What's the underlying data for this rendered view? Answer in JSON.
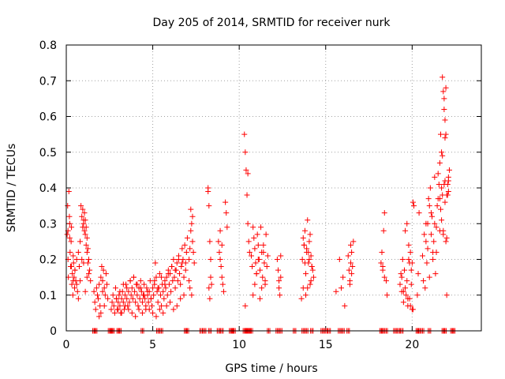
{
  "chart_data": {
    "type": "scatter",
    "title": "Day 205 of 2014, SRMTID for receiver nurk",
    "xlabel": "GPS time / hours",
    "ylabel": "SRMTID / TECUs",
    "xlim": [
      0,
      24
    ],
    "ylim": [
      0,
      0.8
    ],
    "x_ticks": [
      0,
      5,
      10,
      15,
      20
    ],
    "x_tick_labels": [
      "0",
      "5",
      "10",
      "15",
      "20"
    ],
    "y_ticks": [
      0,
      0.1,
      0.2,
      0.3,
      0.4,
      0.5,
      0.6,
      0.7,
      0.8
    ],
    "y_tick_labels": [
      "0",
      "0.1",
      "0.2",
      "0.3",
      "0.4",
      "0.5",
      "0.6",
      "0.7",
      "0.8"
    ],
    "grid": true,
    "marker": "+",
    "color": "#ff0000",
    "zero_markers_x": [
      1.6,
      1.7,
      2.5,
      2.6,
      2.7,
      3.0,
      3.1,
      4.4,
      5.3,
      5.5,
      6.9,
      7.0,
      7.8,
      8.0,
      8.3,
      8.8,
      9.0,
      9.5,
      9.6,
      9.7,
      10.3,
      10.4,
      10.5,
      10.6,
      10.7,
      11.7,
      12.2,
      12.4,
      13.2,
      13.7,
      13.9,
      14.2,
      14.8,
      15.0,
      15.2,
      15.8,
      16.0,
      16.3,
      18.2,
      18.3,
      18.5,
      19.0,
      19.2,
      19.4,
      20.3,
      20.4,
      20.6,
      21.0,
      21.8,
      21.9,
      22.3,
      22.4
    ],
    "series": [
      {
        "name": "SRMTID",
        "x": [
          0.05,
          0.08,
          0.1,
          0.12,
          0.15,
          0.18,
          0.2,
          0.22,
          0.25,
          0.28,
          0.3,
          0.32,
          0.35,
          0.38,
          0.4,
          0.42,
          0.45,
          0.48,
          0.5,
          0.55,
          0.6,
          0.65,
          0.7,
          0.75,
          0.8,
          0.85,
          0.9,
          0.95,
          1.0,
          1.05,
          1.1,
          1.15,
          1.2,
          1.25,
          1.3,
          0.1,
          0.2,
          0.3,
          0.4,
          0.5,
          0.6,
          0.7,
          0.8,
          0.9,
          1.0,
          1.1,
          1.2,
          0.95,
          1.0,
          1.05,
          1.1,
          1.15,
          1.2,
          1.25,
          1.3,
          1.35,
          1.4,
          1.6,
          1.65,
          1.7,
          1.75,
          1.8,
          1.85,
          1.9,
          1.95,
          2.0,
          2.05,
          2.1,
          2.15,
          2.2,
          2.25,
          2.3,
          2.35,
          2.4,
          2.0,
          2.1,
          2.2,
          1.9,
          2.6,
          2.65,
          2.7,
          2.75,
          2.8,
          2.85,
          2.9,
          2.95,
          3.0,
          3.05,
          3.1,
          3.15,
          3.2,
          3.25,
          3.3,
          3.35,
          3.4,
          3.45,
          3.5,
          3.55,
          3.6,
          3.65,
          3.7,
          3.75,
          3.8,
          3.85,
          3.9,
          3.95,
          4.0,
          4.05,
          4.1,
          4.15,
          4.2,
          4.25,
          4.3,
          4.35,
          4.4,
          4.45,
          4.5,
          4.55,
          4.6,
          4.65,
          4.7,
          4.75,
          4.8,
          4.85,
          4.9,
          4.95,
          5.0,
          5.05,
          5.1,
          5.15,
          5.2,
          5.25,
          5.3,
          5.35,
          5.4,
          5.45,
          5.5,
          5.55,
          5.6,
          5.65,
          5.7,
          5.75,
          5.8,
          5.85,
          5.9,
          5.95,
          6.0,
          6.05,
          6.1,
          6.15,
          6.2,
          6.25,
          6.3,
          6.35,
          6.4,
          6.45,
          6.5,
          6.55,
          6.6,
          6.65,
          6.7,
          6.75,
          6.8,
          6.85,
          6.9,
          6.95,
          7.0,
          3.0,
          3.2,
          3.4,
          3.6,
          3.8,
          4.0,
          4.2,
          4.4,
          4.6,
          4.8,
          5.0,
          5.2,
          5.4,
          5.6,
          5.8,
          6.0,
          6.2,
          6.4,
          6.6,
          6.8,
          2.9,
          3.1,
          3.3,
          3.5,
          3.7,
          3.9,
          4.1,
          4.3,
          4.5,
          4.7,
          4.9,
          5.1,
          5.3,
          5.5,
          5.7,
          5.9,
          6.1,
          6.3,
          6.5,
          6.7,
          6.9,
          7.1,
          7.15,
          7.2,
          7.25,
          7.3,
          7.35,
          7.4,
          7.1,
          7.2,
          7.3,
          7.15,
          7.25,
          8.2,
          8.25,
          8.3,
          8.35,
          8.4,
          8.2,
          8.3,
          8.25,
          8.35,
          8.8,
          8.85,
          8.9,
          8.95,
          9.0,
          9.05,
          9.1,
          8.9,
          9.0,
          9.2,
          9.3,
          9.25,
          10.3,
          10.35,
          10.4,
          10.45,
          10.5,
          10.55,
          10.6,
          10.35,
          10.5,
          10.7,
          10.75,
          10.8,
          10.85,
          10.9,
          10.95,
          11.0,
          11.05,
          11.1,
          11.15,
          11.2,
          11.25,
          11.3,
          11.35,
          11.4,
          11.45,
          11.5,
          11.55,
          11.6,
          11.65,
          10.8,
          10.9,
          11.0,
          11.1,
          11.2,
          11.3,
          11.4,
          11.5,
          12.2,
          12.25,
          12.3,
          12.35,
          12.4,
          12.3,
          12.4,
          13.6,
          13.65,
          13.7,
          13.75,
          13.8,
          13.85,
          13.9,
          13.95,
          14.0,
          14.05,
          14.1,
          14.15,
          14.2,
          14.25,
          14.3,
          13.7,
          13.8,
          13.9,
          14.0,
          14.1,
          14.2,
          13.75,
          13.85,
          13.95,
          14.05,
          14.15,
          15.6,
          15.8,
          15.9,
          16.0,
          16.1,
          16.3,
          16.35,
          16.4,
          16.45,
          16.5,
          16.55,
          16.6,
          16.4,
          16.5,
          16.45,
          18.2,
          18.25,
          18.3,
          18.35,
          18.4,
          18.5,
          18.55,
          18.3,
          18.4,
          19.3,
          19.35,
          19.4,
          19.45,
          19.5,
          19.55,
          19.6,
          19.65,
          19.7,
          19.75,
          19.8,
          19.85,
          19.9,
          19.95,
          20.0,
          19.4,
          19.5,
          19.6,
          19.7,
          19.8,
          19.9,
          20.0,
          20.05,
          20.1,
          19.75,
          19.85,
          19.95,
          20.05,
          20.3,
          20.35,
          20.4,
          20.6,
          20.65,
          20.7,
          20.75,
          20.8,
          20.85,
          20.9,
          20.95,
          21.0,
          21.05,
          21.1,
          21.15,
          21.2,
          21.25,
          21.3,
          21.35,
          21.4,
          21.45,
          21.5,
          21.55,
          21.6,
          21.65,
          21.7,
          21.75,
          21.8,
          21.85,
          21.9,
          21.95,
          22.0,
          22.05,
          22.1,
          22.15,
          20.8,
          20.9,
          21.0,
          21.1,
          21.2,
          21.3,
          21.4,
          21.5,
          21.6,
          21.7,
          21.8,
          21.9,
          22.0,
          22.1,
          21.75,
          21.8,
          21.85,
          21.9,
          21.95,
          21.85,
          21.9,
          21.95,
          21.6,
          21.65,
          21.7,
          21.75,
          22.0,
          22.05,
          22.1
        ],
        "y": [
          0.27,
          0.35,
          0.2,
          0.15,
          0.39,
          0.32,
          0.3,
          0.22,
          0.18,
          0.25,
          0.29,
          0.13,
          0.16,
          0.1,
          0.21,
          0.19,
          0.15,
          0.12,
          0.17,
          0.14,
          0.2,
          0.11,
          0.22,
          0.18,
          0.25,
          0.35,
          0.32,
          0.29,
          0.3,
          0.28,
          0.27,
          0.24,
          0.22,
          0.19,
          0.16,
          0.28,
          0.26,
          0.18,
          0.14,
          0.17,
          0.13,
          0.09,
          0.14,
          0.2,
          0.19,
          0.11,
          0.15,
          0.34,
          0.31,
          0.33,
          0.31,
          0.29,
          0.26,
          0.23,
          0.2,
          0.17,
          0.14,
          0.11,
          0.08,
          0.06,
          0.12,
          0.1,
          0.09,
          0.13,
          0.07,
          0.15,
          0.18,
          0.14,
          0.17,
          0.12,
          0.1,
          0.16,
          0.13,
          0.09,
          0.05,
          0.11,
          0.07,
          0.04,
          0.06,
          0.08,
          0.1,
          0.07,
          0.05,
          0.12,
          0.09,
          0.06,
          0.08,
          0.1,
          0.07,
          0.05,
          0.09,
          0.11,
          0.08,
          0.06,
          0.1,
          0.13,
          0.09,
          0.07,
          0.11,
          0.08,
          0.14,
          0.1,
          0.12,
          0.09,
          0.15,
          0.11,
          0.08,
          0.13,
          0.1,
          0.07,
          0.12,
          0.09,
          0.14,
          0.11,
          0.08,
          0.1,
          0.13,
          0.09,
          0.06,
          0.12,
          0.1,
          0.08,
          0.11,
          0.14,
          0.09,
          0.07,
          0.12,
          0.1,
          0.13,
          0.19,
          0.15,
          0.11,
          0.08,
          0.12,
          0.16,
          0.1,
          0.07,
          0.13,
          0.11,
          0.09,
          0.14,
          0.12,
          0.15,
          0.1,
          0.17,
          0.13,
          0.16,
          0.11,
          0.18,
          0.14,
          0.2,
          0.15,
          0.12,
          0.17,
          0.19,
          0.14,
          0.21,
          0.16,
          0.13,
          0.18,
          0.23,
          0.2,
          0.15,
          0.24,
          0.19,
          0.22,
          0.26,
          0.06,
          0.05,
          0.07,
          0.06,
          0.05,
          0.04,
          0.06,
          0.05,
          0.07,
          0.06,
          0.05,
          0.04,
          0.06,
          0.05,
          0.07,
          0.08,
          0.06,
          0.07,
          0.09,
          0.1,
          0.09,
          0.11,
          0.13,
          0.12,
          0.14,
          0.15,
          0.13,
          0.12,
          0.1,
          0.11,
          0.09,
          0.14,
          0.12,
          0.15,
          0.13,
          0.16,
          0.18,
          0.17,
          0.2,
          0.19,
          0.17,
          0.2,
          0.23,
          0.34,
          0.3,
          0.25,
          0.22,
          0.19,
          0.14,
          0.28,
          0.32,
          0.12,
          0.1,
          0.39,
          0.35,
          0.25,
          0.2,
          0.13,
          0.4,
          0.09,
          0.12,
          0.15,
          0.25,
          0.22,
          0.2,
          0.18,
          0.15,
          0.13,
          0.11,
          0.28,
          0.24,
          0.36,
          0.29,
          0.33,
          0.55,
          0.5,
          0.45,
          0.38,
          0.3,
          0.25,
          0.22,
          0.07,
          0.44,
          0.21,
          0.18,
          0.29,
          0.26,
          0.23,
          0.19,
          0.16,
          0.27,
          0.24,
          0.2,
          0.17,
          0.29,
          0.22,
          0.15,
          0.24,
          0.19,
          0.13,
          0.27,
          0.18,
          0.21,
          0.1,
          0.13,
          0.16,
          0.2,
          0.09,
          0.12,
          0.22,
          0.14,
          0.2,
          0.17,
          0.14,
          0.1,
          0.21,
          0.12,
          0.15,
          0.09,
          0.2,
          0.12,
          0.24,
          0.28,
          0.16,
          0.22,
          0.31,
          0.19,
          0.25,
          0.13,
          0.21,
          0.18,
          0.17,
          0.15,
          0.26,
          0.19,
          0.23,
          0.22,
          0.27,
          0.18,
          0.24,
          0.1,
          0.12,
          0.2,
          0.14,
          0.11,
          0.2,
          0.12,
          0.15,
          0.07,
          0.21,
          0.17,
          0.13,
          0.19,
          0.16,
          0.18,
          0.25,
          0.14,
          0.22,
          0.24,
          0.19,
          0.22,
          0.17,
          0.28,
          0.33,
          0.14,
          0.1,
          0.18,
          0.15,
          0.13,
          0.16,
          0.11,
          0.2,
          0.08,
          0.17,
          0.12,
          0.1,
          0.14,
          0.09,
          0.2,
          0.19,
          0.07,
          0.13,
          0.06,
          0.15,
          0.11,
          0.28,
          0.3,
          0.24,
          0.22,
          0.19,
          0.36,
          0.35,
          0.07,
          0.09,
          0.17,
          0.06,
          0.1,
          0.16,
          0.33,
          0.21,
          0.14,
          0.27,
          0.12,
          0.3,
          0.19,
          0.23,
          0.37,
          0.35,
          0.4,
          0.27,
          0.32,
          0.22,
          0.25,
          0.43,
          0.16,
          0.29,
          0.35,
          0.44,
          0.41,
          0.37,
          0.34,
          0.31,
          0.38,
          0.28,
          0.41,
          0.42,
          0.25,
          0.1,
          0.38,
          0.39,
          0.45,
          0.25,
          0.3,
          0.15,
          0.33,
          0.2,
          0.3,
          0.22,
          0.37,
          0.28,
          0.4,
          0.27,
          0.36,
          0.26,
          0.42,
          0.71,
          0.67,
          0.62,
          0.59,
          0.55,
          0.65,
          0.54,
          0.68,
          0.47,
          0.55,
          0.5,
          0.49,
          0.38,
          0.41,
          0.43
        ]
      }
    ]
  }
}
